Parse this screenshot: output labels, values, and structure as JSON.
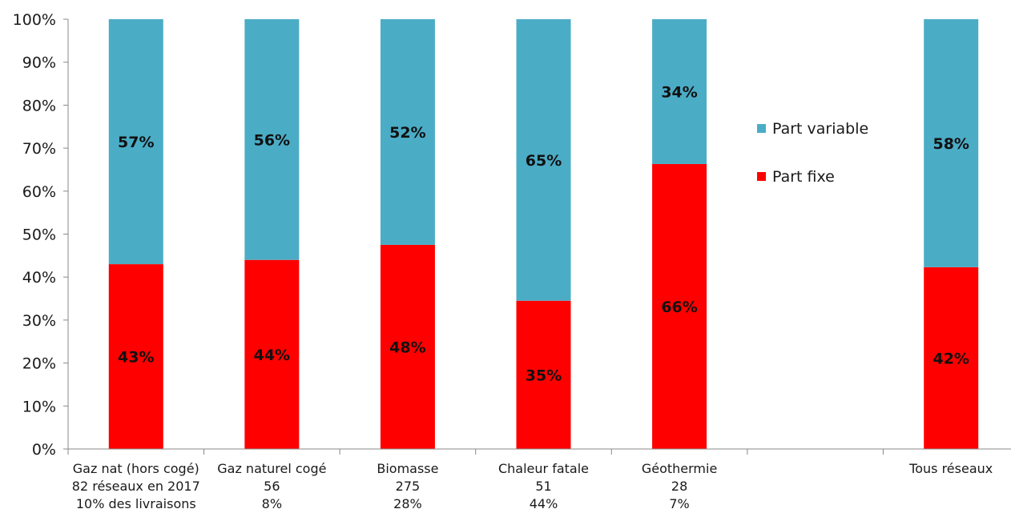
{
  "chart_data": {
    "type": "bar",
    "stacked": true,
    "percent": true,
    "ylim": [
      0,
      100
    ],
    "yticks": [
      "0%",
      "10%",
      "20%",
      "30%",
      "40%",
      "50%",
      "60%",
      "70%",
      "80%",
      "90%",
      "100%"
    ],
    "categories": [
      [
        "Gaz nat (hors cogé)",
        "82 réseaux en 2017",
        "10% des livraisons"
      ],
      [
        "Gaz naturel cogé",
        "56",
        "8%"
      ],
      [
        "Biomasse",
        "275",
        "28%"
      ],
      [
        "Chaleur fatale",
        "51",
        "44%"
      ],
      [
        "Géothermie",
        "28",
        "7%"
      ],
      [
        "",
        "",
        ""
      ],
      [
        "Tous réseaux",
        "",
        ""
      ]
    ],
    "series": [
      {
        "name": "Part fixe",
        "color": "#ff0000",
        "values": [
          43,
          44,
          47.5,
          34.5,
          66.3,
          null,
          42.3
        ],
        "labels": [
          "43%",
          "44%",
          "48%",
          "35%",
          "66%",
          "",
          "42%"
        ]
      },
      {
        "name": "Part variable",
        "color": "#4bacc6",
        "values": [
          57,
          56,
          52.5,
          65.5,
          33.7,
          null,
          57.7
        ],
        "labels": [
          "57%",
          "56%",
          "52%",
          "65%",
          "34%",
          "",
          "58%"
        ]
      }
    ],
    "legend": {
      "position": "right",
      "order": [
        "Part variable",
        "Part fixe"
      ]
    },
    "grid": false
  }
}
